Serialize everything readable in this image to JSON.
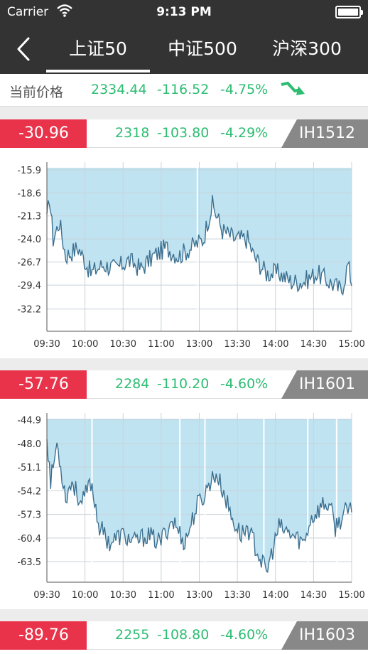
{
  "status": {
    "carrier": "Carrier",
    "time": "9:13 PM"
  },
  "nav": {
    "tabs": [
      {
        "label": "上证50",
        "active": true
      },
      {
        "label": "中证500",
        "active": false
      },
      {
        "label": "沪深300",
        "active": false
      }
    ]
  },
  "current": {
    "label": "当前价格",
    "price": "2334.44",
    "change": "-116.52",
    "percent": "-4.75%"
  },
  "colors": {
    "up": "#2dbd72",
    "basis": "#e8334a",
    "code": "#888888",
    "fill": "#bfe3f1",
    "line": "#3c7090"
  },
  "contracts": [
    {
      "basis": "-30.96",
      "price": "2318",
      "change": "-103.80",
      "percent": "-4.29%",
      "code": "IH1512",
      "chart_data": {
        "type": "area",
        "y_ticks": [
          "-15.9",
          "-18.6",
          "-21.3",
          "-24.0",
          "-26.7",
          "-29.4",
          "-32.2"
        ],
        "y_values": [
          -15.9,
          -18.6,
          -21.3,
          -24.0,
          -26.7,
          -29.4,
          -32.2
        ],
        "x_ticks": [
          "09:30",
          "10:00",
          "10:30",
          "11:00",
          "13:00",
          "13:30",
          "14:00",
          "14:30",
          "15:00"
        ],
        "ylim": [
          -34.8,
          -15.0
        ],
        "anchors": [
          [
            0,
            -22
          ],
          [
            2,
            -19
          ],
          [
            5,
            -24
          ],
          [
            10,
            -22
          ],
          [
            15,
            -26
          ],
          [
            25,
            -25
          ],
          [
            35,
            -28
          ],
          [
            45,
            -27
          ],
          [
            55,
            -27.5
          ],
          [
            65,
            -26.5
          ],
          [
            75,
            -27.5
          ],
          [
            85,
            -26
          ],
          [
            95,
            -25
          ],
          [
            105,
            -26
          ],
          [
            115,
            -25
          ],
          [
            125,
            -24
          ],
          [
            128,
            -22
          ],
          [
            132,
            -20
          ],
          [
            140,
            -23
          ],
          [
            150,
            -24
          ],
          [
            160,
            -24
          ],
          [
            165,
            -26
          ],
          [
            175,
            -28
          ],
          [
            185,
            -28
          ],
          [
            195,
            -29
          ],
          [
            205,
            -29
          ],
          [
            215,
            -28
          ],
          [
            225,
            -29
          ],
          [
            235,
            -30
          ],
          [
            240,
            -27
          ],
          [
            243,
            -29
          ]
        ],
        "gaps": [
          120
        ]
      }
    },
    {
      "basis": "-57.76",
      "price": "2284",
      "change": "-110.20",
      "percent": "-4.60%",
      "code": "IH1601",
      "chart_data": {
        "type": "area",
        "y_ticks": [
          "-44.9",
          "-48.0",
          "-51.1",
          "-54.2",
          "-57.3",
          "-60.4",
          "-63.5"
        ],
        "y_values": [
          -44.9,
          -48.0,
          -51.1,
          -54.2,
          -57.3,
          -60.4,
          -63.5
        ],
        "x_ticks": [
          "09:30",
          "10:00",
          "10:30",
          "11:00",
          "13:00",
          "13:30",
          "14:00",
          "14:30",
          "15:00"
        ],
        "ylim": [
          -66.2,
          -44.0
        ],
        "anchors": [
          [
            0,
            -47
          ],
          [
            3,
            -53
          ],
          [
            8,
            -48
          ],
          [
            15,
            -55
          ],
          [
            20,
            -53
          ],
          [
            28,
            -56
          ],
          [
            35,
            -53
          ],
          [
            42,
            -59
          ],
          [
            50,
            -61
          ],
          [
            60,
            -60
          ],
          [
            70,
            -61
          ],
          [
            80,
            -60
          ],
          [
            90,
            -61
          ],
          [
            100,
            -58
          ],
          [
            110,
            -61
          ],
          [
            120,
            -56
          ],
          [
            125,
            -55
          ],
          [
            130,
            -53
          ],
          [
            135,
            -52
          ],
          [
            140,
            -54
          ],
          [
            148,
            -58
          ],
          [
            155,
            -60
          ],
          [
            160,
            -59
          ],
          [
            170,
            -63
          ],
          [
            175,
            -65
          ],
          [
            180,
            -62
          ],
          [
            185,
            -59
          ],
          [
            195,
            -60
          ],
          [
            205,
            -61
          ],
          [
            210,
            -58
          ],
          [
            215,
            -57
          ],
          [
            220,
            -56
          ],
          [
            225,
            -56
          ],
          [
            230,
            -59
          ],
          [
            238,
            -57
          ],
          [
            243,
            -57
          ]
        ],
        "gaps": [
          36,
          106,
          126,
          173,
          208,
          231
        ]
      }
    },
    {
      "basis": "-89.76",
      "price": "2255",
      "change": "-108.80",
      "percent": "-4.60%",
      "code": "IH1603"
    }
  ]
}
